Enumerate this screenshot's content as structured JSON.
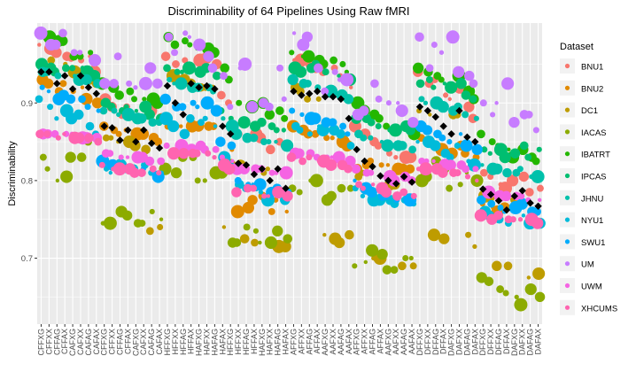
{
  "chart_data": {
    "type": "scatter",
    "title": "Discriminability of 64 Pipelines Using Raw fMRI",
    "xlabel": "",
    "ylabel": "Discriminability",
    "ylim": [
      0.615,
      1.003
    ],
    "yticks": [
      0.7,
      0.8,
      0.9
    ],
    "grid": true,
    "legend_position": "right",
    "legend_title": "Dataset",
    "datasets": [
      {
        "name": "BNU1",
        "color": "#F8766D"
      },
      {
        "name": "BNU2",
        "color": "#E18A00"
      },
      {
        "name": "DC1",
        "color": "#BE9C00"
      },
      {
        "name": "IACAS",
        "color": "#8CAB00"
      },
      {
        "name": "IBATRT",
        "color": "#24B700"
      },
      {
        "name": "IPCAS",
        "color": "#00BE70"
      },
      {
        "name": "JHNU",
        "color": "#00C1AB"
      },
      {
        "name": "NYU1",
        "color": "#00BBDA"
      },
      {
        "name": "SWU1",
        "color": "#00ACFC"
      },
      {
        "name": "UM",
        "color": "#C77CFF"
      },
      {
        "name": "UWM",
        "color": "#F564E3"
      },
      {
        "name": "XHCUMS",
        "color": "#FF64B0"
      }
    ],
    "pipelines": [
      "CFFXG",
      "CFFXX",
      "CFFAG",
      "CFFAX",
      "CAFXG",
      "CAFXX",
      "CAFAG",
      "CAFAX",
      "CFFXG",
      "CFFXX",
      "CFFAG",
      "CFFAX",
      "CAFXG",
      "CAFXX",
      "CAFAG",
      "CAFAX",
      "HFFXG",
      "HFFXX",
      "HFFAG",
      "HFFAX",
      "HAFXG",
      "HAFXX",
      "HAFAG",
      "HAFAX",
      "HFFXG",
      "HFFXX",
      "HFFAG",
      "HFFAX",
      "HAFXG",
      "HAFXX",
      "HAFAG",
      "HAFAX",
      "AFFXG",
      "AFFXX",
      "AFFAG",
      "AFFAX",
      "AAFXG",
      "AAFXX",
      "AAFAG",
      "AAFAX",
      "AFFXG",
      "AFFXX",
      "AFFAG",
      "AFFAX",
      "AAFXG",
      "AAFXX",
      "AAFAG",
      "AAFAX",
      "DFFXG",
      "DFFXX",
      "DFFAG",
      "DFFAX",
      "DAFXG",
      "DAFXX",
      "DAFAG",
      "DAFAX",
      "DFFXG",
      "DFFXX",
      "DFFAG",
      "DFFAX",
      "DAFXG",
      "DAFXX",
      "DAFAG",
      "DAFAX"
    ],
    "mean_marker": {
      "shape": "diamond",
      "color": "#000000"
    },
    "values": {
      "mean": [
        0.94,
        0.94,
        0.925,
        0.935,
        0.918,
        0.935,
        0.92,
        0.912,
        0.87,
        0.868,
        0.852,
        0.865,
        0.85,
        0.865,
        0.848,
        0.842,
        0.922,
        0.9,
        0.885,
        0.925,
        0.92,
        0.922,
        0.918,
        0.87,
        0.86,
        0.822,
        0.82,
        0.808,
        0.815,
        0.8,
        0.815,
        0.79,
        0.915,
        0.91,
        0.912,
        0.915,
        0.908,
        0.908,
        0.905,
        0.88,
        0.84,
        0.825,
        0.818,
        0.806,
        0.8,
        0.796,
        0.805,
        0.798,
        0.895,
        0.89,
        0.882,
        0.87,
        0.86,
        0.89,
        0.856,
        0.85,
        0.789,
        0.782,
        0.774,
        0.762,
        0.78,
        0.787,
        0.771,
        0.767
      ],
      "BNU1": [
        0.975,
        0.97,
        0.965,
        0.96,
        0.958,
        0.955,
        0.96,
        0.94,
        0.905,
        0.895,
        0.885,
        0.895,
        0.88,
        0.895,
        0.89,
        0.88,
        0.96,
        0.95,
        0.955,
        0.95,
        0.955,
        0.958,
        0.95,
        0.91,
        0.9,
        0.86,
        0.855,
        0.86,
        0.855,
        0.84,
        0.85,
        0.845,
        0.955,
        0.955,
        0.95,
        0.945,
        0.94,
        0.945,
        0.935,
        0.92,
        0.87,
        0.86,
        0.85,
        0.845,
        0.835,
        0.83,
        0.83,
        0.83,
        0.94,
        0.925,
        0.93,
        0.91,
        0.905,
        0.92,
        0.895,
        0.88,
        0.81,
        0.805,
        0.795,
        0.79,
        0.8,
        0.805,
        0.785,
        0.79
      ],
      "BNU2": [
        0.93,
        0.925,
        0.915,
        0.925,
        0.915,
        0.92,
        0.905,
        0.9,
        0.87,
        0.865,
        0.86,
        0.865,
        0.86,
        0.86,
        0.855,
        0.85,
        0.87,
        0.87,
        0.87,
        0.87,
        0.87,
        0.87,
        0.87,
        0.85,
        0.84,
        0.76,
        0.765,
        0.775,
        0.78,
        0.76,
        0.775,
        0.76,
        0.87,
        0.865,
        0.86,
        0.86,
        0.855,
        0.855,
        0.85,
        0.845,
        0.815,
        0.82,
        0.825,
        0.82,
        0.82,
        0.815,
        0.815,
        0.815,
        0.855,
        0.85,
        0.845,
        0.84,
        0.835,
        0.845,
        0.835,
        0.83,
        0.77,
        0.765,
        0.76,
        0.765,
        0.765,
        0.77,
        0.76,
        0.76
      ],
      "DC1": [
        0.95,
        0.955,
        0.94,
        0.95,
        0.94,
        0.935,
        0.93,
        0.925,
        0.855,
        0.855,
        0.85,
        0.85,
        0.845,
        0.84,
        0.735,
        0.74,
        0.935,
        0.935,
        0.93,
        0.925,
        0.92,
        0.92,
        0.92,
        0.74,
        0.82,
        0.82,
        0.725,
        0.72,
        0.81,
        0.815,
        0.715,
        0.715,
        0.92,
        0.915,
        0.905,
        0.905,
        0.73,
        0.725,
        0.72,
        0.73,
        0.805,
        0.81,
        0.7,
        0.7,
        0.795,
        0.795,
        0.69,
        0.69,
        0.89,
        0.885,
        0.73,
        0.725,
        0.885,
        0.885,
        0.73,
        0.715,
        0.78,
        0.78,
        0.69,
        0.69,
        0.775,
        0.77,
        0.675,
        0.68
      ],
      "IACAS": [
        0.83,
        0.815,
        0.8,
        0.805,
        0.83,
        0.83,
        0.85,
        0.85,
        0.745,
        0.745,
        0.76,
        0.755,
        0.745,
        0.745,
        0.76,
        0.75,
        0.815,
        0.81,
        0.83,
        0.83,
        0.8,
        0.8,
        0.81,
        0.81,
        0.72,
        0.72,
        0.74,
        0.735,
        0.72,
        0.72,
        0.735,
        0.725,
        0.79,
        0.785,
        0.8,
        0.8,
        0.775,
        0.78,
        0.79,
        0.79,
        0.69,
        0.695,
        0.71,
        0.705,
        0.685,
        0.685,
        0.7,
        0.7,
        0.8,
        0.805,
        0.825,
        0.815,
        0.79,
        0.795,
        0.81,
        0.8,
        0.675,
        0.67,
        0.66,
        0.655,
        0.65,
        0.64,
        0.66,
        0.65
      ],
      "IBATRT": [
        0.985,
        0.985,
        0.98,
        0.98,
        0.96,
        0.96,
        0.965,
        0.955,
        0.925,
        0.92,
        0.91,
        0.915,
        0.905,
        0.905,
        0.905,
        0.9,
        0.985,
        0.975,
        0.98,
        0.975,
        0.97,
        0.97,
        0.965,
        0.945,
        0.93,
        0.9,
        0.895,
        0.895,
        0.9,
        0.885,
        0.89,
        0.88,
        0.965,
        0.96,
        0.96,
        0.955,
        0.95,
        0.955,
        0.95,
        0.94,
        0.9,
        0.89,
        0.885,
        0.88,
        0.87,
        0.865,
        0.87,
        0.86,
        0.945,
        0.94,
        0.935,
        0.93,
        0.92,
        0.935,
        0.915,
        0.905,
        0.86,
        0.85,
        0.845,
        0.84,
        0.83,
        0.84,
        0.83,
        0.825
      ],
      "IPCAS": [
        0.95,
        0.945,
        0.94,
        0.945,
        0.945,
        0.945,
        0.94,
        0.935,
        0.9,
        0.895,
        0.89,
        0.895,
        0.89,
        0.895,
        0.885,
        0.88,
        0.945,
        0.94,
        0.94,
        0.945,
        0.94,
        0.945,
        0.935,
        0.89,
        0.88,
        0.875,
        0.875,
        0.87,
        0.875,
        0.87,
        0.865,
        0.865,
        0.945,
        0.94,
        0.945,
        0.95,
        0.94,
        0.94,
        0.935,
        0.93,
        0.88,
        0.88,
        0.875,
        0.87,
        0.865,
        0.865,
        0.87,
        0.865,
        0.925,
        0.93,
        0.92,
        0.925,
        0.92,
        0.925,
        0.91,
        0.905,
        0.84,
        0.835,
        0.84,
        0.83,
        0.835,
        0.845,
        0.83,
        0.84
      ],
      "JHNU": [
        0.94,
        0.94,
        0.935,
        0.935,
        0.935,
        0.93,
        0.93,
        0.925,
        0.89,
        0.89,
        0.885,
        0.885,
        0.88,
        0.88,
        0.875,
        0.875,
        0.93,
        0.925,
        0.925,
        0.92,
        0.92,
        0.92,
        0.915,
        0.88,
        0.87,
        0.86,
        0.855,
        0.855,
        0.85,
        0.85,
        0.85,
        0.845,
        0.93,
        0.925,
        0.925,
        0.92,
        0.915,
        0.915,
        0.91,
        0.905,
        0.86,
        0.855,
        0.855,
        0.85,
        0.845,
        0.845,
        0.845,
        0.84,
        0.905,
        0.9,
        0.9,
        0.895,
        0.89,
        0.895,
        0.885,
        0.88,
        0.82,
        0.815,
        0.815,
        0.81,
        0.81,
        0.815,
        0.805,
        0.805
      ],
      "NYU1": [
        0.905,
        0.895,
        0.88,
        0.89,
        0.88,
        0.885,
        0.87,
        0.86,
        0.815,
        0.81,
        0.82,
        0.815,
        0.815,
        0.82,
        0.81,
        0.81,
        0.88,
        0.87,
        0.86,
        0.88,
        0.875,
        0.88,
        0.87,
        0.83,
        0.82,
        0.795,
        0.79,
        0.79,
        0.785,
        0.775,
        0.785,
        0.775,
        0.87,
        0.865,
        0.86,
        0.87,
        0.865,
        0.865,
        0.86,
        0.845,
        0.79,
        0.78,
        0.775,
        0.775,
        0.775,
        0.77,
        0.775,
        0.77,
        0.85,
        0.85,
        0.845,
        0.835,
        0.83,
        0.845,
        0.825,
        0.82,
        0.76,
        0.755,
        0.75,
        0.745,
        0.75,
        0.755,
        0.745,
        0.745
      ],
      "SWU1": [
        0.92,
        0.915,
        0.905,
        0.91,
        0.905,
        0.905,
        0.895,
        0.89,
        0.825,
        0.82,
        0.815,
        0.815,
        0.81,
        0.815,
        0.81,
        0.805,
        0.905,
        0.895,
        0.895,
        0.9,
        0.895,
        0.9,
        0.89,
        0.85,
        0.845,
        0.8,
        0.795,
        0.795,
        0.795,
        0.785,
        0.79,
        0.785,
        0.89,
        0.885,
        0.88,
        0.88,
        0.875,
        0.875,
        0.87,
        0.86,
        0.8,
        0.79,
        0.785,
        0.78,
        0.78,
        0.775,
        0.78,
        0.775,
        0.87,
        0.865,
        0.86,
        0.855,
        0.85,
        0.86,
        0.845,
        0.84,
        0.775,
        0.77,
        0.765,
        0.76,
        0.765,
        0.77,
        0.76,
        0.76
      ],
      "UM": [
        0.99,
        0.975,
        0.975,
        0.99,
        0.965,
        0.965,
        0.955,
        0.955,
        0.925,
        0.925,
        0.96,
        0.925,
        0.92,
        0.925,
        0.945,
        0.925,
        0.985,
        0.965,
        0.99,
        0.985,
        0.975,
        0.96,
        0.945,
        0.935,
        0.895,
        0.945,
        0.95,
        0.895,
        0.9,
        0.895,
        0.945,
        0.905,
        0.99,
        0.975,
        0.985,
        0.945,
        0.915,
        0.94,
        0.93,
        0.93,
        0.885,
        0.89,
        0.925,
        0.905,
        0.9,
        0.9,
        0.89,
        0.875,
        0.985,
        0.945,
        0.975,
        0.965,
        0.985,
        0.94,
        0.935,
        0.925,
        0.9,
        0.885,
        0.9,
        0.925,
        0.875,
        0.885,
        0.885,
        0.865
      ],
      "UWM": [
        0.86,
        0.86,
        0.86,
        0.86,
        0.86,
        0.855,
        0.855,
        0.855,
        0.835,
        0.835,
        0.83,
        0.83,
        0.83,
        0.83,
        0.825,
        0.825,
        0.845,
        0.84,
        0.845,
        0.84,
        0.845,
        0.84,
        0.84,
        0.83,
        0.825,
        0.815,
        0.815,
        0.815,
        0.815,
        0.81,
        0.81,
        0.81,
        0.835,
        0.835,
        0.835,
        0.83,
        0.83,
        0.83,
        0.83,
        0.825,
        0.815,
        0.81,
        0.81,
        0.805,
        0.805,
        0.8,
        0.805,
        0.8,
        0.825,
        0.825,
        0.825,
        0.82,
        0.82,
        0.82,
        0.815,
        0.815,
        0.785,
        0.785,
        0.78,
        0.78,
        0.78,
        0.78,
        0.775,
        0.775
      ],
      "XHCUMS": [
        0.86,
        0.86,
        0.855,
        0.86,
        0.855,
        0.855,
        0.855,
        0.85,
        0.82,
        0.815,
        0.815,
        0.815,
        0.81,
        0.81,
        0.815,
        0.81,
        0.835,
        0.835,
        0.835,
        0.835,
        0.835,
        0.835,
        0.83,
        0.82,
        0.815,
        0.785,
        0.79,
        0.79,
        0.78,
        0.78,
        0.785,
        0.78,
        0.83,
        0.825,
        0.83,
        0.825,
        0.825,
        0.82,
        0.82,
        0.815,
        0.795,
        0.79,
        0.795,
        0.79,
        0.785,
        0.78,
        0.785,
        0.78,
        0.815,
        0.815,
        0.815,
        0.81,
        0.81,
        0.81,
        0.805,
        0.8,
        0.755,
        0.75,
        0.755,
        0.75,
        0.75,
        0.75,
        0.75,
        0.745
      ]
    }
  }
}
